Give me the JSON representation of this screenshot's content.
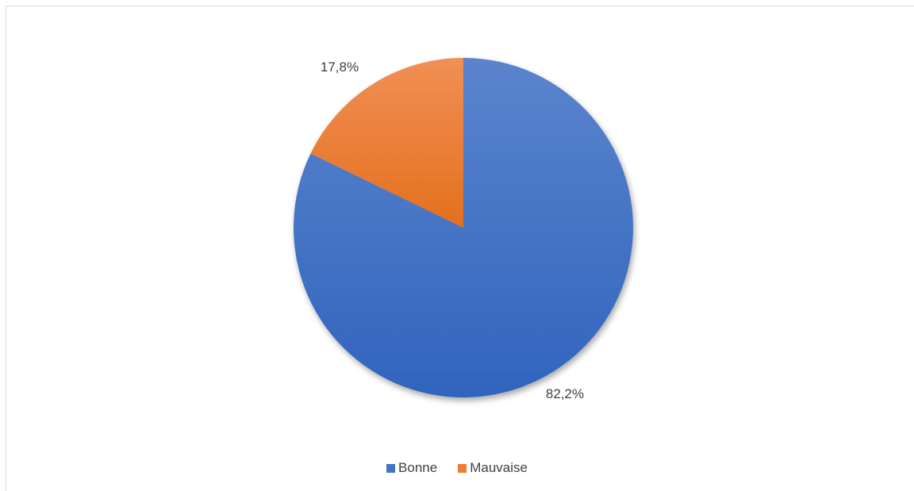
{
  "chart_data": {
    "type": "pie",
    "title": "",
    "categories": [
      "Bonne",
      "Mauvaise"
    ],
    "values": [
      82.2,
      17.8
    ],
    "labels": [
      "82,2%",
      "17,8%"
    ],
    "colors": [
      "#4472c4",
      "#ed7d31"
    ],
    "legend_position": "bottom",
    "start_angle": "12 o'clock, clockwise"
  },
  "legend": {
    "items": [
      {
        "label": "Bonne",
        "color": "#4472c4"
      },
      {
        "label": "Mauvaise",
        "color": "#ed7d31"
      }
    ]
  }
}
